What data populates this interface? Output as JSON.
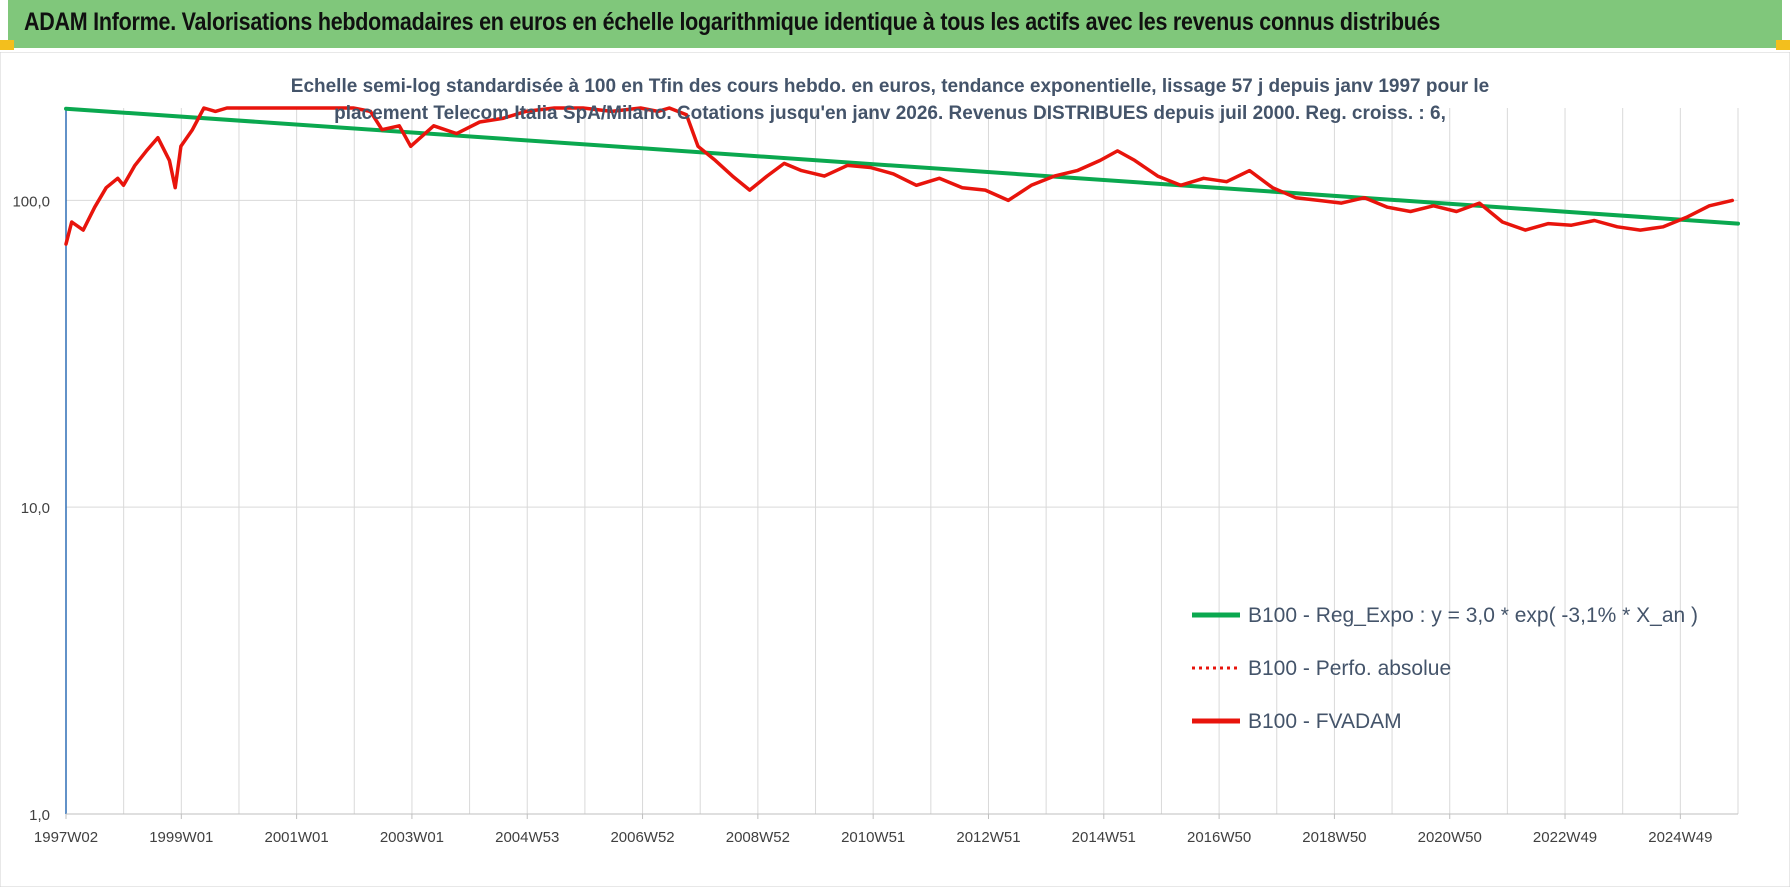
{
  "header": {
    "title": "ADAM Informe. Valorisations hebdomadaires en euros en échelle logarithmique identique à tous les actifs avec les revenus connus distribués"
  },
  "colors": {
    "header_bg": "#80c77b",
    "corner_accent": "#f3bf1d",
    "trend": "#0aa84f",
    "fvadam": "#e8140c",
    "perfo": "#e8140c",
    "axis": "#2f6fb5",
    "grid": "#d9d9d9",
    "text": "#44546a"
  },
  "chart_data": {
    "type": "line",
    "title_lines": [
      "Echelle semi-log standardisée à 100 en Tfin des cours hebdo. en euros, tendance exponentielle, lissage 57 j depuis janv 1997 pour le",
      "placement Telecom Italia SpA/Milano. Cotations jusqu'en janv 2026. Revenus DISTRIBUES depuis juil 2000. Reg. croiss. : 6,"
    ],
    "y_scale": "log",
    "ylim": [
      1,
      200
    ],
    "y_ticks": [
      "1,0",
      "10,0",
      "100,0"
    ],
    "x_tick_labels": [
      "1997W02",
      "1999W01",
      "2001W01",
      "2003W01",
      "2004W53",
      "2006W52",
      "2008W52",
      "2010W51",
      "2012W51",
      "2014W51",
      "2016W50",
      "2018W50",
      "2020W50",
      "2022W49",
      "2024W49"
    ],
    "grid": "vertical",
    "legend_position": "right-middle",
    "series": [
      {
        "name": "B100 - Reg_Expo : y = 3,0 * exp( -3,1% *  X_an )",
        "style": "solid-thick",
        "x": [
          1997.0,
          2026.1
        ],
        "values": [
          199,
          84
        ]
      },
      {
        "name": "B100 - Perfo. absolue",
        "style": "dotted",
        "x": [],
        "values": []
      },
      {
        "name": "B100 - FVADAM",
        "style": "solid-thick",
        "x": [
          1997.0,
          1997.1,
          1997.3,
          1997.5,
          1997.7,
          1997.9,
          1998.0,
          1998.2,
          1998.4,
          1998.6,
          1998.8,
          1998.9,
          1999.0,
          1999.2,
          1999.4,
          1999.6,
          1999.8,
          2000.0,
          2000.2,
          2000.5,
          2001.0,
          2001.5,
          2001.8,
          2002.0,
          2002.3,
          2002.5,
          2002.8,
          2003.0,
          2003.4,
          2003.8,
          2004.2,
          2004.6,
          2005.0,
          2005.5,
          2006.0,
          2006.5,
          2007.0,
          2007.3,
          2007.5,
          2007.8,
          2008.0,
          2008.3,
          2008.6,
          2008.9,
          2009.2,
          2009.5,
          2009.8,
          2010.2,
          2010.6,
          2011.0,
          2011.4,
          2011.8,
          2012.2,
          2012.6,
          2013.0,
          2013.4,
          2013.8,
          2014.2,
          2014.6,
          2015.0,
          2015.3,
          2015.6,
          2016.0,
          2016.4,
          2016.8,
          2017.2,
          2017.6,
          2018.0,
          2018.4,
          2018.8,
          2019.2,
          2019.6,
          2020.0,
          2020.4,
          2020.8,
          2021.2,
          2021.6,
          2022.0,
          2022.4,
          2022.8,
          2023.2,
          2023.6,
          2024.0,
          2024.4,
          2024.8,
          2025.2,
          2025.6,
          2026.0
        ],
        "values": [
          72,
          85,
          80,
          95,
          110,
          118,
          112,
          130,
          145,
          160,
          135,
          110,
          150,
          170,
          200,
          195,
          205,
          210,
          200,
          200,
          205,
          210,
          230,
          200,
          195,
          170,
          175,
          150,
          175,
          165,
          180,
          185,
          195,
          200,
          205,
          195,
          200,
          195,
          205,
          190,
          150,
          135,
          120,
          108,
          120,
          132,
          125,
          120,
          130,
          128,
          122,
          112,
          118,
          110,
          108,
          100,
          112,
          120,
          125,
          135,
          145,
          135,
          120,
          112,
          118,
          115,
          125,
          110,
          102,
          100,
          98,
          102,
          95,
          92,
          96,
          92,
          98,
          85,
          80,
          84,
          83,
          86,
          82,
          80,
          82,
          88,
          96,
          100
        ]
      }
    ]
  }
}
